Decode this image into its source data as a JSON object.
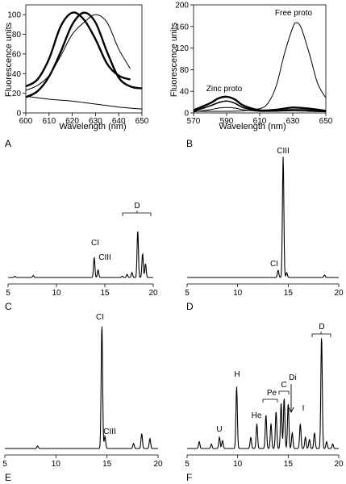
{
  "chart_data": [
    {
      "panel": "A",
      "type": "line",
      "ylabel": "Fluorescence units",
      "xlabel": "Wavelength (nm)",
      "xlim": [
        600,
        650
      ],
      "ylim": [
        0,
        110
      ],
      "xticks": [
        600,
        610,
        620,
        630,
        640,
        650
      ],
      "yticks": [
        0,
        20,
        40,
        60,
        80,
        100
      ],
      "series": [
        {
          "style": "thick",
          "x": [
            600,
            605,
            610,
            615,
            620,
            625,
            630,
            635,
            640,
            645
          ],
          "y": [
            27,
            34,
            55,
            88,
            102,
            95,
            75,
            50,
            38,
            34
          ]
        },
        {
          "style": "thick",
          "x": [
            600,
            605,
            610,
            615,
            620,
            625,
            630,
            635,
            640,
            645,
            650
          ],
          "y": [
            16,
            22,
            37,
            62,
            90,
            102,
            92,
            62,
            36,
            27,
            25
          ]
        },
        {
          "style": "thin",
          "x": [
            600,
            605,
            610,
            615,
            620,
            625,
            630,
            635,
            640,
            645
          ],
          "y": [
            23,
            28,
            38,
            58,
            80,
            92,
            100,
            92,
            65,
            45
          ]
        },
        {
          "style": "thin",
          "x": [
            600,
            610,
            620,
            630,
            640,
            650
          ],
          "y": [
            17,
            14,
            12,
            9,
            6,
            4
          ]
        }
      ]
    },
    {
      "panel": "B",
      "type": "line",
      "ylabel": "Fluorescence units",
      "xlabel": "Wavelength (nm)",
      "xlim": [
        570,
        650
      ],
      "ylim": [
        0,
        200
      ],
      "xticks": [
        570,
        590,
        610,
        630,
        650
      ],
      "yticks": [
        0,
        40,
        80,
        120,
        160,
        200
      ],
      "annotations": [
        "Zinc proto",
        "Free proto"
      ],
      "series": [
        {
          "style": "thick",
          "x": [
            570,
            580,
            585,
            590,
            595,
            600,
            610,
            620,
            630,
            640,
            650
          ],
          "y": [
            5,
            18,
            27,
            30,
            25,
            14,
            5,
            6,
            10,
            8,
            4
          ]
        },
        {
          "style": "medium",
          "x": [
            570,
            580,
            585,
            590,
            595,
            600,
            610,
            620,
            630,
            640,
            650
          ],
          "y": [
            3,
            13,
            19,
            22,
            18,
            10,
            4,
            4,
            6,
            5,
            3
          ]
        },
        {
          "style": "thin",
          "x": [
            570,
            580,
            585,
            590,
            595,
            600,
            610,
            620,
            630,
            640,
            650
          ],
          "y": [
            2,
            6,
            9,
            10,
            9,
            6,
            3,
            3,
            4,
            3,
            2
          ]
        },
        {
          "style": "thin",
          "x": [
            570,
            590,
            600,
            610,
            615,
            620,
            625,
            630,
            632,
            635,
            640,
            645,
            650
          ],
          "y": [
            3,
            3,
            4,
            8,
            18,
            50,
            110,
            158,
            167,
            158,
            110,
            55,
            28
          ]
        }
      ]
    },
    {
      "panel": "C",
      "type": "line",
      "xlim": [
        5,
        20
      ],
      "xticks": [
        5,
        10,
        15,
        20
      ],
      "annotations": [
        "CI",
        "CIII",
        "D"
      ],
      "peaks": [
        [
          5.7,
          0.02
        ],
        [
          7.6,
          0.03
        ],
        [
          13.9,
          0.32
        ],
        [
          14.3,
          0.12
        ],
        [
          16.8,
          0.02
        ],
        [
          17.3,
          0.05
        ],
        [
          17.8,
          0.08
        ],
        [
          18.4,
          0.75
        ],
        [
          18.9,
          0.38
        ],
        [
          19.2,
          0.22
        ]
      ]
    },
    {
      "panel": "D",
      "type": "line",
      "xlim": [
        5,
        20
      ],
      "xticks": [
        5,
        10,
        15,
        20
      ],
      "annotations": [
        "CIII",
        "CI"
      ],
      "peaks": [
        [
          14.0,
          0.06
        ],
        [
          14.5,
          1.0
        ],
        [
          14.85,
          0.04
        ],
        [
          18.6,
          0.02
        ]
      ]
    },
    {
      "panel": "E",
      "type": "line",
      "xlim": [
        5,
        20
      ],
      "xticks": [
        5,
        10,
        15,
        20
      ],
      "annotations": [
        "CI",
        "CIII"
      ],
      "peaks": [
        [
          8.2,
          0.02
        ],
        [
          14.5,
          1.0
        ],
        [
          14.8,
          0.1
        ],
        [
          17.6,
          0.04
        ],
        [
          18.4,
          0.12
        ],
        [
          19.2,
          0.08
        ]
      ]
    },
    {
      "panel": "F",
      "type": "line",
      "xlim": [
        5,
        20
      ],
      "xticks": [
        5,
        10,
        15,
        20
      ],
      "annotations": [
        "D",
        "H",
        "Di",
        "C",
        "Pe",
        "He",
        "I",
        "U"
      ],
      "peaks": [
        [
          6.2,
          0.06
        ],
        [
          7.4,
          0.04
        ],
        [
          8.2,
          0.1
        ],
        [
          8.5,
          0.07
        ],
        [
          9.9,
          0.55
        ],
        [
          11.3,
          0.1
        ],
        [
          11.9,
          0.22
        ],
        [
          12.8,
          0.3
        ],
        [
          13.3,
          0.22
        ],
        [
          13.8,
          0.33
        ],
        [
          14.3,
          0.4
        ],
        [
          14.6,
          0.45
        ],
        [
          15.0,
          0.4
        ],
        [
          15.4,
          0.14
        ],
        [
          16.2,
          0.22
        ],
        [
          16.7,
          0.1
        ],
        [
          17.1,
          0.08
        ],
        [
          17.6,
          0.14
        ],
        [
          18.3,
          1.0
        ],
        [
          18.8,
          0.06
        ],
        [
          19.4,
          0.04
        ]
      ]
    }
  ],
  "labels": {
    "panel_a": "A",
    "panel_b": "B",
    "panel_c": "C",
    "panel_d": "D",
    "panel_e": "E",
    "panel_f": "F",
    "a_ylabel": "Fluorescence units",
    "a_xlabel": "Wavelength (nm)",
    "b_ylabel": "Fluorescence units",
    "b_xlabel": "Wavelength (nm)",
    "b_zinc": "Zinc proto",
    "b_free": "Free proto",
    "c_ci": "CI",
    "c_ciii": "CIII",
    "c_d": "D",
    "d_ciii": "CIII",
    "d_ci": "CI",
    "e_ci": "CI",
    "e_ciii": "CIII",
    "f_d": "D",
    "f_h": "H",
    "f_di": "Di",
    "f_c": "C",
    "f_pe": "Pe",
    "f_he": "He",
    "f_i": "I",
    "f_u": "U"
  }
}
